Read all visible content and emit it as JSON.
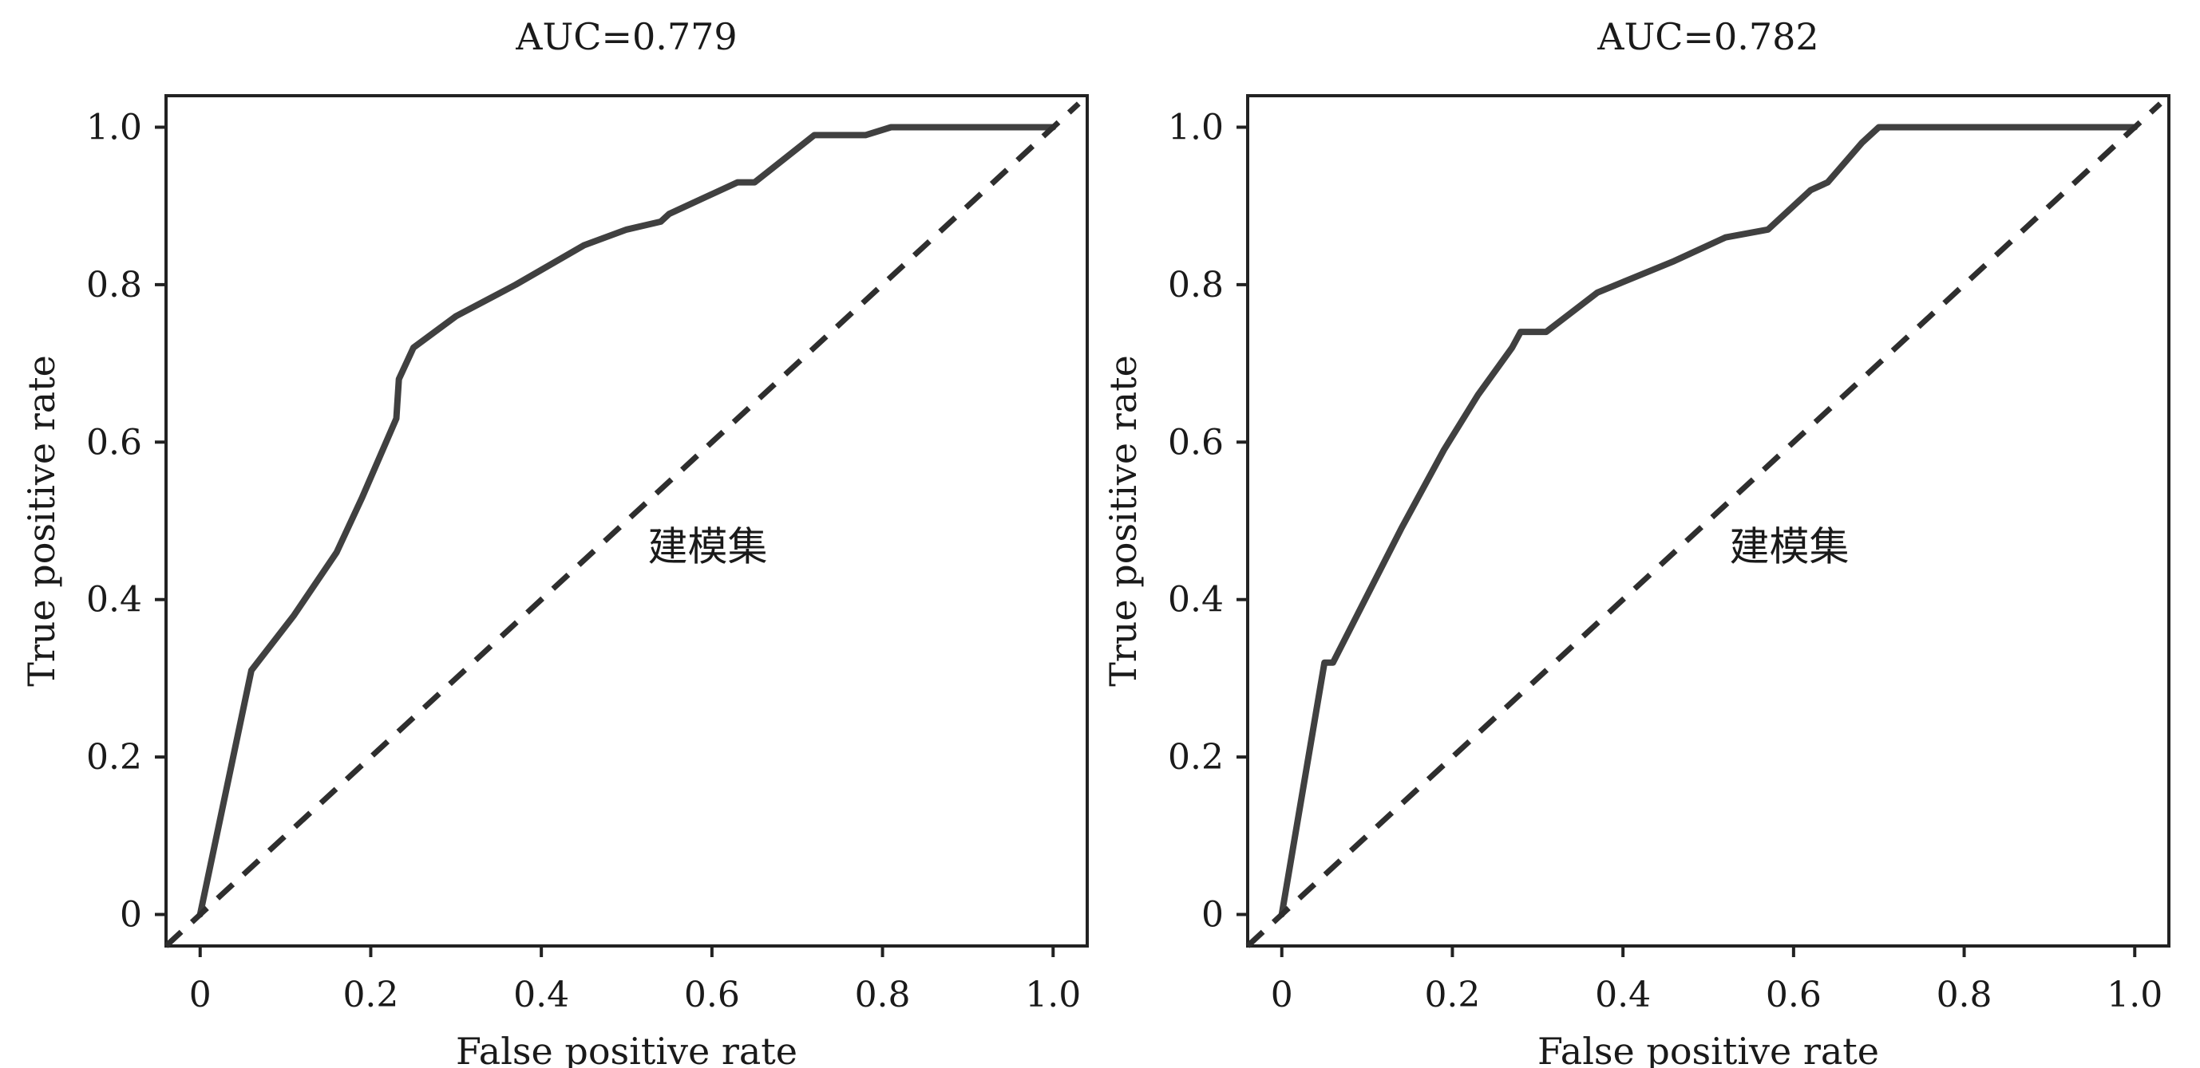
{
  "chart_data": [
    {
      "type": "line",
      "title": "AUC=0.779",
      "xlabel": "False positive rate",
      "ylabel": "True positive rate",
      "annotation": "建模集",
      "xlim": [
        -0.04,
        1.04
      ],
      "ylim": [
        -0.04,
        1.04
      ],
      "x_ticks": [
        0,
        0.2,
        0.4,
        0.6,
        0.8,
        1.0
      ],
      "x_tick_labels": [
        "0",
        "0.2",
        "0.4",
        "0.6",
        "0.8",
        "1.0"
      ],
      "y_ticks": [
        0,
        0.2,
        0.4,
        0.6,
        0.8,
        1.0
      ],
      "y_tick_labels": [
        "0",
        "0.2",
        "0.4",
        "0.6",
        "0.8",
        "1.0"
      ],
      "grid": false,
      "series": [
        {
          "style": "solid",
          "x": [
            0,
            0.06,
            0.11,
            0.16,
            0.19,
            0.23,
            0.233,
            0.25,
            0.3,
            0.37,
            0.45,
            0.5,
            0.54,
            0.55,
            0.63,
            0.65,
            0.72,
            0.78,
            0.81,
            0.86,
            1.0
          ],
          "y": [
            0,
            0.31,
            0.38,
            0.46,
            0.53,
            0.63,
            0.68,
            0.72,
            0.76,
            0.8,
            0.85,
            0.87,
            0.88,
            0.89,
            0.93,
            0.93,
            0.99,
            0.99,
            1.0,
            1.0,
            1.0
          ]
        },
        {
          "style": "dashed",
          "x": [
            -0.04,
            1.03
          ],
          "y": [
            -0.04,
            1.03
          ]
        }
      ]
    },
    {
      "type": "line",
      "title": "AUC=0.782",
      "xlabel": "False positive rate",
      "ylabel": "True positive rate",
      "annotation": "建模集",
      "xlim": [
        -0.04,
        1.04
      ],
      "ylim": [
        -0.04,
        1.04
      ],
      "x_ticks": [
        0,
        0.2,
        0.4,
        0.6,
        0.8,
        1.0
      ],
      "x_tick_labels": [
        "0",
        "0.2",
        "0.4",
        "0.6",
        "0.8",
        "1.0"
      ],
      "y_ticks": [
        0,
        0.2,
        0.4,
        0.6,
        0.8,
        1.0
      ],
      "y_tick_labels": [
        "0",
        "0.2",
        "0.4",
        "0.6",
        "0.8",
        "1.0"
      ],
      "grid": false,
      "series": [
        {
          "style": "solid",
          "x": [
            0,
            0.05,
            0.06,
            0.14,
            0.19,
            0.23,
            0.27,
            0.28,
            0.31,
            0.37,
            0.46,
            0.52,
            0.57,
            0.62,
            0.64,
            0.68,
            0.7,
            0.8,
            0.82,
            1.0
          ],
          "y": [
            0,
            0.32,
            0.32,
            0.49,
            0.59,
            0.66,
            0.72,
            0.74,
            0.74,
            0.79,
            0.83,
            0.86,
            0.87,
            0.92,
            0.93,
            0.98,
            1.0,
            1.0,
            1.0,
            1.0
          ]
        },
        {
          "style": "dashed",
          "x": [
            -0.04,
            1.03
          ],
          "y": [
            -0.04,
            1.03
          ]
        }
      ]
    }
  ]
}
